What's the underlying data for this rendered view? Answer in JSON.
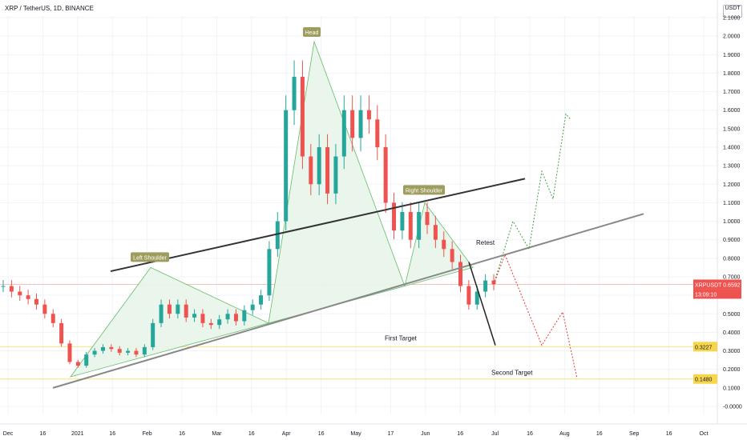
{
  "chart_data": {
    "type": "line",
    "title": "XRP / TetherUS, 1D, BINANCE",
    "unit_label": "USDT",
    "y_ticks": [
      "2.1000",
      "2.0000",
      "1.9000",
      "1.8000",
      "1.7000",
      "1.6000",
      "1.5000",
      "1.4000",
      "1.3000",
      "1.2000",
      "1.1000",
      "1.0000",
      "0.9000",
      "0.8000",
      "0.7000",
      "0.6000",
      "0.5000",
      "0.4000",
      "0.3000",
      "0.2000",
      "0.1000",
      "-0.0000"
    ],
    "x_ticks": [
      "Dec",
      "16",
      "2021",
      "16",
      "Feb",
      "16",
      "Mar",
      "16",
      "Apr",
      "16",
      "May",
      "17",
      "Jun",
      "16",
      "Jul",
      "16",
      "Aug",
      "16",
      "Sep",
      "16",
      "Oct"
    ],
    "ylim": [
      -0.02,
      2.16
    ],
    "grid": true,
    "price_series": {
      "name": "XRPUSDT",
      "close": [
        0.65,
        0.62,
        0.6,
        0.58,
        0.55,
        0.5,
        0.45,
        0.34,
        0.24,
        0.22,
        0.28,
        0.3,
        0.32,
        0.31,
        0.29,
        0.3,
        0.28,
        0.32,
        0.45,
        0.55,
        0.5,
        0.55,
        0.48,
        0.5,
        0.45,
        0.44,
        0.47,
        0.5,
        0.46,
        0.52,
        0.55,
        0.6,
        0.85,
        1.0,
        1.6,
        1.78,
        1.35,
        1.2,
        1.4,
        1.15,
        1.35,
        1.6,
        1.45,
        1.6,
        1.55,
        1.4,
        1.1,
        0.95,
        1.05,
        0.9,
        1.05,
        0.98,
        0.9,
        0.85,
        0.78,
        0.65,
        0.55,
        0.62,
        0.68,
        0.66
      ]
    },
    "annotations": [
      {
        "label": "Head",
        "value": 1.97
      },
      {
        "label": "Left Shoulder",
        "value": 0.75
      },
      {
        "label": "Right Shoulder",
        "value": 1.1
      },
      {
        "label": "Retest",
        "value": 0.82
      },
      {
        "label": "First Target",
        "value": 0.3227
      },
      {
        "label": "Second Target",
        "value": 0.148
      }
    ],
    "price_tags": [
      {
        "label": "XRPUSDT",
        "value": "0.6592",
        "color": "#ef5350"
      },
      {
        "label": "",
        "value": "13:09:10",
        "color": "#ef5350"
      },
      {
        "label": "",
        "value": "0.3227",
        "color": "#f7d64a"
      },
      {
        "label": "",
        "value": "0.1480",
        "color": "#f7d64a"
      }
    ],
    "levels": [
      0.3227,
      0.148
    ],
    "colors": {
      "up": "#26a69a",
      "down": "#ef5350",
      "pattern_fill": "#e8f5e9",
      "pattern_line": "#66bb6a",
      "neckline": "#333333",
      "support": "#888888",
      "bull_path": "#43a047",
      "bear_path": "#e53935",
      "target_line": "#f7e27a"
    }
  }
}
